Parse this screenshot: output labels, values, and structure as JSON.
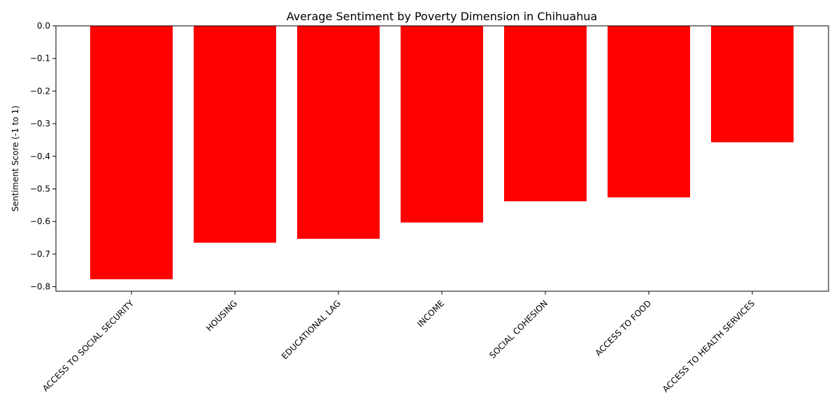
{
  "chart_data": {
    "type": "bar",
    "title": "Average Sentiment by Poverty Dimension in Chihuahua",
    "xlabel": "",
    "ylabel": "Sentiment Score (-1 to 1)",
    "categories": [
      "ACCESS TO SOCIAL SECURITY",
      "HOUSING",
      "EDUCATIONAL LAG",
      "INCOME",
      "SOCIAL COHESION",
      "ACCESS TO FOOD",
      "ACCESS TO HEALTH SERVICES"
    ],
    "values": [
      -0.777,
      -0.665,
      -0.653,
      -0.603,
      -0.538,
      -0.526,
      -0.357
    ],
    "ylim": [
      -0.8137,
      0.0
    ],
    "yticks": [
      0.0,
      -0.1,
      -0.2,
      -0.3,
      -0.4,
      -0.5,
      -0.6,
      -0.7,
      -0.8
    ],
    "ytick_labels": [
      "0.0",
      "−0.1",
      "−0.2",
      "−0.3",
      "−0.4",
      "−0.5",
      "−0.6",
      "−0.7",
      "−0.8"
    ],
    "bar_color": "#ff0000",
    "grid": false,
    "legend": "none"
  }
}
